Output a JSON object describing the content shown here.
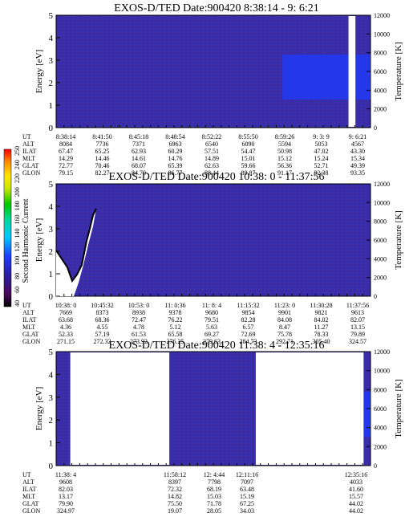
{
  "colors": {
    "bg_fill": "#3a2ea8",
    "bright_blue": "#1e3cff",
    "gap": "#ffffff",
    "colorbar": [
      "#000000",
      "#4a0a5a",
      "#2a1ea0",
      "#1e3cff",
      "#00c8ff",
      "#00d8a0",
      "#00c800",
      "#c8e600",
      "#ffe600",
      "#ff8c00",
      "#ff0000"
    ]
  },
  "colorbar": {
    "label": "Second Harmonic Current",
    "ticks": [
      "40",
      "60",
      "80",
      "100",
      "120",
      "140",
      "160",
      "180",
      "200",
      "220",
      "240",
      "250"
    ]
  },
  "chart_data": [
    {
      "type": "heatmap",
      "title": "EXOS-D/TED  Date:900420  8:38:14 - 9: 6:21",
      "ylabel": "Energy [eV]",
      "ylim": [
        0,
        5
      ],
      "yticks": [
        "0",
        "1",
        "2",
        "3",
        "4",
        "5"
      ],
      "y2label": "Temperature [K]",
      "y2lim": [
        0,
        12000
      ],
      "y2ticks": [
        "0",
        "2000",
        "4000",
        "6000",
        "8000",
        "10000",
        "12000"
      ],
      "data_gaps": [
        [
          0.93,
          0.952
        ]
      ],
      "bright_regions": [
        [
          0.72,
          1.0
        ]
      ],
      "table": {
        "row_labels": [
          "UT",
          "ALT",
          "ILAT",
          "MLT",
          "GLAT",
          "GLON"
        ],
        "columns": [
          [
            "8:38:14",
            "8084",
            "67.47",
            "14.29",
            "72.77",
            "79.15"
          ],
          [
            "8:41:50",
            "7736",
            "65.25",
            "14.46",
            "70.46",
            "82.27"
          ],
          [
            "8:45:18",
            "7371",
            "62.93",
            "14.61",
            "68.07",
            "84.70"
          ],
          [
            "8:48:54",
            "6963",
            "60.29",
            "14.76",
            "65.39",
            "86.77"
          ],
          [
            "8:52:22",
            "6540",
            "57.51",
            "14.89",
            "62.63",
            "88.44"
          ],
          [
            "8:55:50",
            "6090",
            "54.47",
            "15.01",
            "59.66",
            "89.87"
          ],
          [
            "8:59:26",
            "5594",
            "50.98",
            "15.12",
            "56.36",
            "91.17"
          ],
          [
            "9: 3: 9",
            "5053",
            "47.02",
            "15.24",
            "52.71",
            "92.38"
          ],
          [
            "9: 6:21",
            "4567",
            "43.30",
            "15.34",
            "49.39",
            "93.35"
          ]
        ]
      }
    },
    {
      "type": "heatmap",
      "title": "EXOS-D/TED  Date:900420  10:38: 0 - 11:37:56",
      "ylabel": "Energy [eV]",
      "ylim": [
        0,
        5
      ],
      "yticks": [
        "0",
        "1",
        "2",
        "3",
        "4",
        "5"
      ],
      "y2label": "Temperature [K]",
      "y2lim": [
        0,
        12000
      ],
      "y2ticks": [
        "0",
        "2000",
        "4000",
        "6000",
        "8000",
        "10000",
        "12000"
      ],
      "data_gaps": [],
      "bright_regions": [],
      "table": {
        "row_labels": [
          "UT",
          "ALT",
          "ILAT",
          "MLT",
          "GLAT",
          "GLON"
        ],
        "columns": [
          [
            "10:38: 0",
            "7669",
            "63.68",
            "4.36",
            "52.33",
            "271.15"
          ],
          [
            "10:45:32",
            "8373",
            "68.36",
            "4.55",
            "57.19",
            "272.32"
          ],
          [
            "10:53: 0",
            "8938",
            "72.47",
            "4.78",
            "61.53",
            "273.92"
          ],
          [
            "11: 0:36",
            "9378",
            "76.22",
            "5.12",
            "65.58",
            "276.25"
          ],
          [
            "11: 8: 4",
            "9680",
            "79.51",
            "5.63",
            "69.27",
            "279.63"
          ],
          [
            "11:15:32",
            "9854",
            "82.28",
            "6.57",
            "72.69",
            "284.73"
          ],
          [
            "11:23: 0",
            "9901",
            "84.08",
            "8.47",
            "75.78",
            "292.71"
          ],
          [
            "11:30:28",
            "9821",
            "84.02",
            "11.27",
            "78.33",
            "305.40"
          ],
          [
            "11:37:56",
            "9613",
            "82.07",
            "13.15",
            "79.89",
            "324.57"
          ]
        ]
      }
    },
    {
      "type": "heatmap",
      "title": "EXOS-D/TED  Date:900420  11:38: 4 - 12:35:16",
      "ylabel": "Energy [eV]",
      "ylim": [
        0,
        5
      ],
      "yticks": [
        "0",
        "1",
        "2",
        "3",
        "4",
        "5"
      ],
      "y2label": "Temperature [K]",
      "y2lim": [
        0,
        12000
      ],
      "y2ticks": [
        "0",
        "2000",
        "4000",
        "6000",
        "8000",
        "10000",
        "12000"
      ],
      "data_gaps": [
        [
          0.045,
          0.36
        ],
        [
          0.635,
          0.978
        ]
      ],
      "bright_regions": [
        [
          0.978,
          1.0
        ]
      ],
      "table": {
        "row_labels": [
          "UT",
          "ALT",
          "ILAT",
          "MLT",
          "GLAT",
          "GLON"
        ],
        "columns": [
          [
            "11:38: 4",
            "9608",
            "82.03",
            "13.17",
            "79.90",
            "324.97"
          ],
          [
            "11:58:12",
            "8397",
            "72.32",
            "14.82",
            "75.50",
            "19.07"
          ],
          [
            "12: 4:44",
            "7798",
            "68.19",
            "15.03",
            "71.78",
            "28.05"
          ],
          [
            "12:11:16",
            "7097",
            "63.48",
            "15.19",
            "67.25",
            "34.03"
          ],
          [
            "12:35:16",
            "4033",
            "41.60",
            "15.57",
            "44.02",
            "44.02"
          ]
        ]
      }
    }
  ]
}
